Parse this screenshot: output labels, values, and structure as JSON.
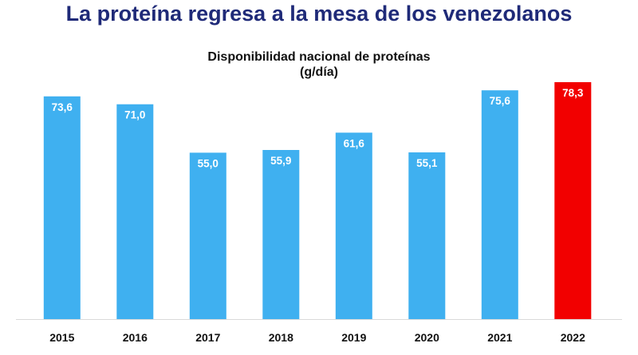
{
  "headline": "La proteína regresa a la mesa de los venezolanos",
  "chart_data": {
    "type": "bar",
    "title": "Disponibilidad nacional de proteínas",
    "subtitle": "(g/día)",
    "xlabel": "",
    "ylabel": "",
    "categories": [
      "2015",
      "2016",
      "2017",
      "2018",
      "2019",
      "2020",
      "2021",
      "2022"
    ],
    "values": [
      73.6,
      71.0,
      55.0,
      55.9,
      61.6,
      55.1,
      75.6,
      78.3
    ],
    "value_labels": [
      "73,6",
      "71,0",
      "55,0",
      "55,9",
      "61,6",
      "55,1",
      "75,6",
      "78,3"
    ],
    "ylim": [
      0,
      78.3
    ],
    "grid": false,
    "legend": "none",
    "colors": [
      "#3fb0f0",
      "#3fb0f0",
      "#3fb0f0",
      "#3fb0f0",
      "#3fb0f0",
      "#3fb0f0",
      "#3fb0f0",
      "#f20000"
    ]
  }
}
